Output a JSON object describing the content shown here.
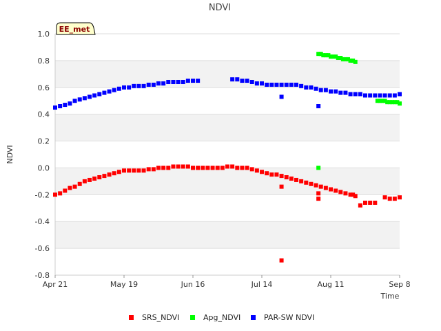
{
  "chart_data": {
    "type": "scatter",
    "title": "NDVI",
    "xlabel": "Time",
    "ylabel": "NDVI",
    "ylim": [
      -0.8,
      1.0
    ],
    "yticks": [
      -0.8,
      -0.6,
      -0.4,
      -0.2,
      0.0,
      0.2,
      0.4,
      0.6,
      0.8,
      1.0
    ],
    "ytick_labels": [
      "-0.8",
      "-0.6",
      "-0.4",
      "-0.2",
      "0.0",
      "0.2",
      "0.4",
      "0.6",
      "0.8",
      "1.0"
    ],
    "xlim_days": [
      0,
      140
    ],
    "xticks": [
      {
        "label": "Apr 21",
        "day": 0
      },
      {
        "label": "May 19",
        "day": 28
      },
      {
        "label": "Jun 16",
        "day": 56
      },
      {
        "label": "Jul 14",
        "day": 84
      },
      {
        "label": "Aug 11",
        "day": 112
      },
      {
        "label": "Sep 8",
        "day": 140
      }
    ],
    "badge": "EE_met",
    "legend_position": "bottom-center",
    "series": [
      {
        "name": "SRS_NDVI",
        "color": "#ff0000",
        "points": [
          [
            0,
            -0.2
          ],
          [
            2,
            -0.19
          ],
          [
            4,
            -0.17
          ],
          [
            6,
            -0.15
          ],
          [
            8,
            -0.14
          ],
          [
            10,
            -0.12
          ],
          [
            12,
            -0.1
          ],
          [
            14,
            -0.09
          ],
          [
            16,
            -0.08
          ],
          [
            18,
            -0.07
          ],
          [
            20,
            -0.06
          ],
          [
            22,
            -0.05
          ],
          [
            24,
            -0.04
          ],
          [
            26,
            -0.03
          ],
          [
            28,
            -0.02
          ],
          [
            30,
            -0.02
          ],
          [
            32,
            -0.02
          ],
          [
            34,
            -0.02
          ],
          [
            36,
            -0.02
          ],
          [
            38,
            -0.01
          ],
          [
            40,
            -0.01
          ],
          [
            42,
            0.0
          ],
          [
            44,
            0.0
          ],
          [
            46,
            0.0
          ],
          [
            48,
            0.01
          ],
          [
            50,
            0.01
          ],
          [
            52,
            0.01
          ],
          [
            54,
            0.01
          ],
          [
            56,
            0.0
          ],
          [
            58,
            0.0
          ],
          [
            60,
            0.0
          ],
          [
            62,
            0.0
          ],
          [
            64,
            0.0
          ],
          [
            66,
            0.0
          ],
          [
            68,
            0.0
          ],
          [
            70,
            0.01
          ],
          [
            72,
            0.01
          ],
          [
            74,
            0.0
          ],
          [
            76,
            0.0
          ],
          [
            78,
            0.0
          ],
          [
            80,
            -0.01
          ],
          [
            82,
            -0.02
          ],
          [
            84,
            -0.03
          ],
          [
            86,
            -0.04
          ],
          [
            88,
            -0.05
          ],
          [
            90,
            -0.05
          ],
          [
            92,
            -0.06
          ],
          [
            94,
            -0.07
          ],
          [
            96,
            -0.08
          ],
          [
            98,
            -0.09
          ],
          [
            100,
            -0.1
          ],
          [
            102,
            -0.11
          ],
          [
            104,
            -0.12
          ],
          [
            106,
            -0.13
          ],
          [
            108,
            -0.14
          ],
          [
            110,
            -0.15
          ],
          [
            112,
            -0.16
          ],
          [
            114,
            -0.17
          ],
          [
            116,
            -0.18
          ],
          [
            118,
            -0.19
          ],
          [
            120,
            -0.2
          ],
          [
            122,
            -0.21
          ],
          [
            124,
            -0.28
          ],
          [
            126,
            -0.26
          ],
          [
            128,
            -0.26
          ],
          [
            130,
            -0.26
          ],
          [
            134,
            -0.22
          ],
          [
            136,
            -0.23
          ],
          [
            138,
            -0.23
          ],
          [
            140,
            -0.22
          ],
          [
            92,
            -0.14
          ],
          [
            92,
            -0.69
          ],
          [
            107,
            -0.19
          ],
          [
            107,
            -0.23
          ],
          [
            121,
            -0.2
          ]
        ]
      },
      {
        "name": "Apg_NDVI",
        "color": "#00ff00",
        "points": [
          [
            107,
            0.85
          ],
          [
            108,
            0.85
          ],
          [
            109,
            0.84
          ],
          [
            110,
            0.84
          ],
          [
            111,
            0.84
          ],
          [
            112,
            0.83
          ],
          [
            113,
            0.83
          ],
          [
            114,
            0.83
          ],
          [
            115,
            0.82
          ],
          [
            116,
            0.82
          ],
          [
            117,
            0.81
          ],
          [
            118,
            0.81
          ],
          [
            119,
            0.81
          ],
          [
            120,
            0.8
          ],
          [
            121,
            0.8
          ],
          [
            122,
            0.79
          ],
          [
            107,
            0.0
          ],
          [
            131,
            0.5
          ],
          [
            132,
            0.5
          ],
          [
            133,
            0.5
          ],
          [
            134,
            0.5
          ],
          [
            135,
            0.49
          ],
          [
            136,
            0.49
          ],
          [
            137,
            0.49
          ],
          [
            138,
            0.49
          ],
          [
            139,
            0.49
          ],
          [
            140,
            0.48
          ]
        ]
      },
      {
        "name": "PAR-SW NDVI",
        "color": "#0000ff",
        "points": [
          [
            0,
            0.45
          ],
          [
            2,
            0.46
          ],
          [
            4,
            0.47
          ],
          [
            6,
            0.48
          ],
          [
            8,
            0.5
          ],
          [
            10,
            0.51
          ],
          [
            12,
            0.52
          ],
          [
            14,
            0.53
          ],
          [
            16,
            0.54
          ],
          [
            18,
            0.55
          ],
          [
            20,
            0.56
          ],
          [
            22,
            0.57
          ],
          [
            24,
            0.58
          ],
          [
            26,
            0.59
          ],
          [
            28,
            0.6
          ],
          [
            30,
            0.6
          ],
          [
            32,
            0.61
          ],
          [
            34,
            0.61
          ],
          [
            36,
            0.61
          ],
          [
            38,
            0.62
          ],
          [
            40,
            0.62
          ],
          [
            42,
            0.63
          ],
          [
            44,
            0.63
          ],
          [
            46,
            0.64
          ],
          [
            48,
            0.64
          ],
          [
            50,
            0.64
          ],
          [
            52,
            0.64
          ],
          [
            54,
            0.65
          ],
          [
            56,
            0.65
          ],
          [
            58,
            0.65
          ],
          [
            72,
            0.66
          ],
          [
            74,
            0.66
          ],
          [
            76,
            0.65
          ],
          [
            78,
            0.65
          ],
          [
            80,
            0.64
          ],
          [
            82,
            0.63
          ],
          [
            84,
            0.63
          ],
          [
            86,
            0.62
          ],
          [
            88,
            0.62
          ],
          [
            90,
            0.62
          ],
          [
            92,
            0.62
          ],
          [
            94,
            0.62
          ],
          [
            96,
            0.62
          ],
          [
            98,
            0.62
          ],
          [
            100,
            0.61
          ],
          [
            102,
            0.6
          ],
          [
            104,
            0.6
          ],
          [
            106,
            0.59
          ],
          [
            108,
            0.58
          ],
          [
            110,
            0.58
          ],
          [
            112,
            0.57
          ],
          [
            114,
            0.57
          ],
          [
            116,
            0.56
          ],
          [
            118,
            0.56
          ],
          [
            120,
            0.55
          ],
          [
            122,
            0.55
          ],
          [
            124,
            0.55
          ],
          [
            126,
            0.54
          ],
          [
            128,
            0.54
          ],
          [
            130,
            0.54
          ],
          [
            132,
            0.54
          ],
          [
            134,
            0.54
          ],
          [
            136,
            0.54
          ],
          [
            138,
            0.54
          ],
          [
            140,
            0.55
          ],
          [
            92,
            0.53
          ],
          [
            107,
            0.46
          ]
        ]
      }
    ]
  }
}
